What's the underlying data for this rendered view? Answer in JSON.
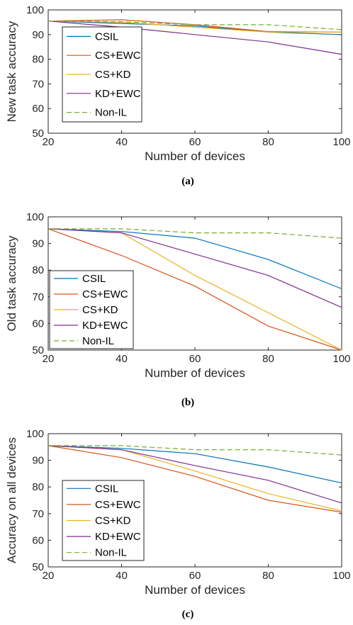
{
  "chart_data": [
    {
      "type": "line",
      "caption": "(a)",
      "xlabel": "Number of devices",
      "ylabel": "New task accuracy",
      "x": [
        20,
        40,
        60,
        80,
        100
      ],
      "xlim": [
        20,
        100
      ],
      "ylim": [
        50,
        100
      ],
      "xticks": [
        20,
        40,
        60,
        80,
        100
      ],
      "yticks": [
        50,
        60,
        70,
        80,
        90,
        100
      ],
      "grid": false,
      "legend_position": "left",
      "series": [
        {
          "name": "CSIL",
          "color": "#0072BD",
          "dashed": false,
          "values": [
            95.5,
            94.5,
            93.5,
            91,
            90
          ]
        },
        {
          "name": "CS+EWC",
          "color": "#D95319",
          "dashed": false,
          "values": [
            95.5,
            96,
            94,
            91.2,
            91
          ]
        },
        {
          "name": "CS+KD",
          "color": "#EDB120",
          "dashed": false,
          "values": [
            95.5,
            95,
            93,
            91,
            91
          ]
        },
        {
          "name": "KD+EWC",
          "color": "#7E2F8E",
          "dashed": false,
          "values": [
            95.5,
            93,
            90,
            87,
            82
          ]
        },
        {
          "name": "Non-IL",
          "color": "#77AC30",
          "dashed": true,
          "values": [
            95.5,
            95.2,
            94,
            94,
            92
          ]
        }
      ]
    },
    {
      "type": "line",
      "caption": "(b)",
      "xlabel": "Number of devices",
      "ylabel": "Old task accuracy",
      "x": [
        20,
        40,
        60,
        80,
        100
      ],
      "xlim": [
        20,
        100
      ],
      "ylim": [
        50,
        100
      ],
      "xticks": [
        20,
        40,
        60,
        80,
        100
      ],
      "yticks": [
        50,
        60,
        70,
        80,
        90,
        100
      ],
      "grid": false,
      "legend_position": "bottom-left",
      "series": [
        {
          "name": "CSIL",
          "color": "#0072BD",
          "dashed": false,
          "values": [
            95.5,
            94.5,
            92,
            84,
            73
          ]
        },
        {
          "name": "CS+EWC",
          "color": "#D95319",
          "dashed": false,
          "values": [
            95.5,
            85.5,
            74,
            59,
            50
          ]
        },
        {
          "name": "CS+KD",
          "color": "#EDB120",
          "dashed": false,
          "values": [
            95.5,
            94,
            78,
            64,
            50
          ]
        },
        {
          "name": "KD+EWC",
          "color": "#7E2F8E",
          "dashed": false,
          "values": [
            95.5,
            94,
            86,
            78,
            66
          ]
        },
        {
          "name": "Non-IL",
          "color": "#77AC30",
          "dashed": true,
          "values": [
            95.5,
            95.5,
            94,
            94,
            92
          ]
        }
      ]
    },
    {
      "type": "line",
      "caption": "(c)",
      "xlabel": "Number of devices",
      "ylabel": "Accuracy on all devices",
      "x": [
        20,
        40,
        60,
        80,
        100
      ],
      "xlim": [
        20,
        100
      ],
      "ylim": [
        50,
        100
      ],
      "xticks": [
        20,
        40,
        60,
        80,
        100
      ],
      "yticks": [
        50,
        60,
        70,
        80,
        90,
        100
      ],
      "grid": false,
      "legend_position": "left",
      "series": [
        {
          "name": "CSIL",
          "color": "#0072BD",
          "dashed": false,
          "values": [
            95.5,
            94.5,
            92.5,
            87.5,
            81.5
          ]
        },
        {
          "name": "CS+EWC",
          "color": "#D95319",
          "dashed": false,
          "values": [
            95.5,
            91,
            84,
            75,
            70.5
          ]
        },
        {
          "name": "CS+KD",
          "color": "#EDB120",
          "dashed": false,
          "values": [
            95.5,
            94,
            86,
            77.5,
            71
          ]
        },
        {
          "name": "KD+EWC",
          "color": "#7E2F8E",
          "dashed": false,
          "values": [
            95.5,
            94,
            88,
            82.5,
            74
          ]
        },
        {
          "name": "Non-IL",
          "color": "#77AC30",
          "dashed": true,
          "values": [
            95.5,
            95.5,
            94,
            94,
            92
          ]
        }
      ]
    }
  ]
}
